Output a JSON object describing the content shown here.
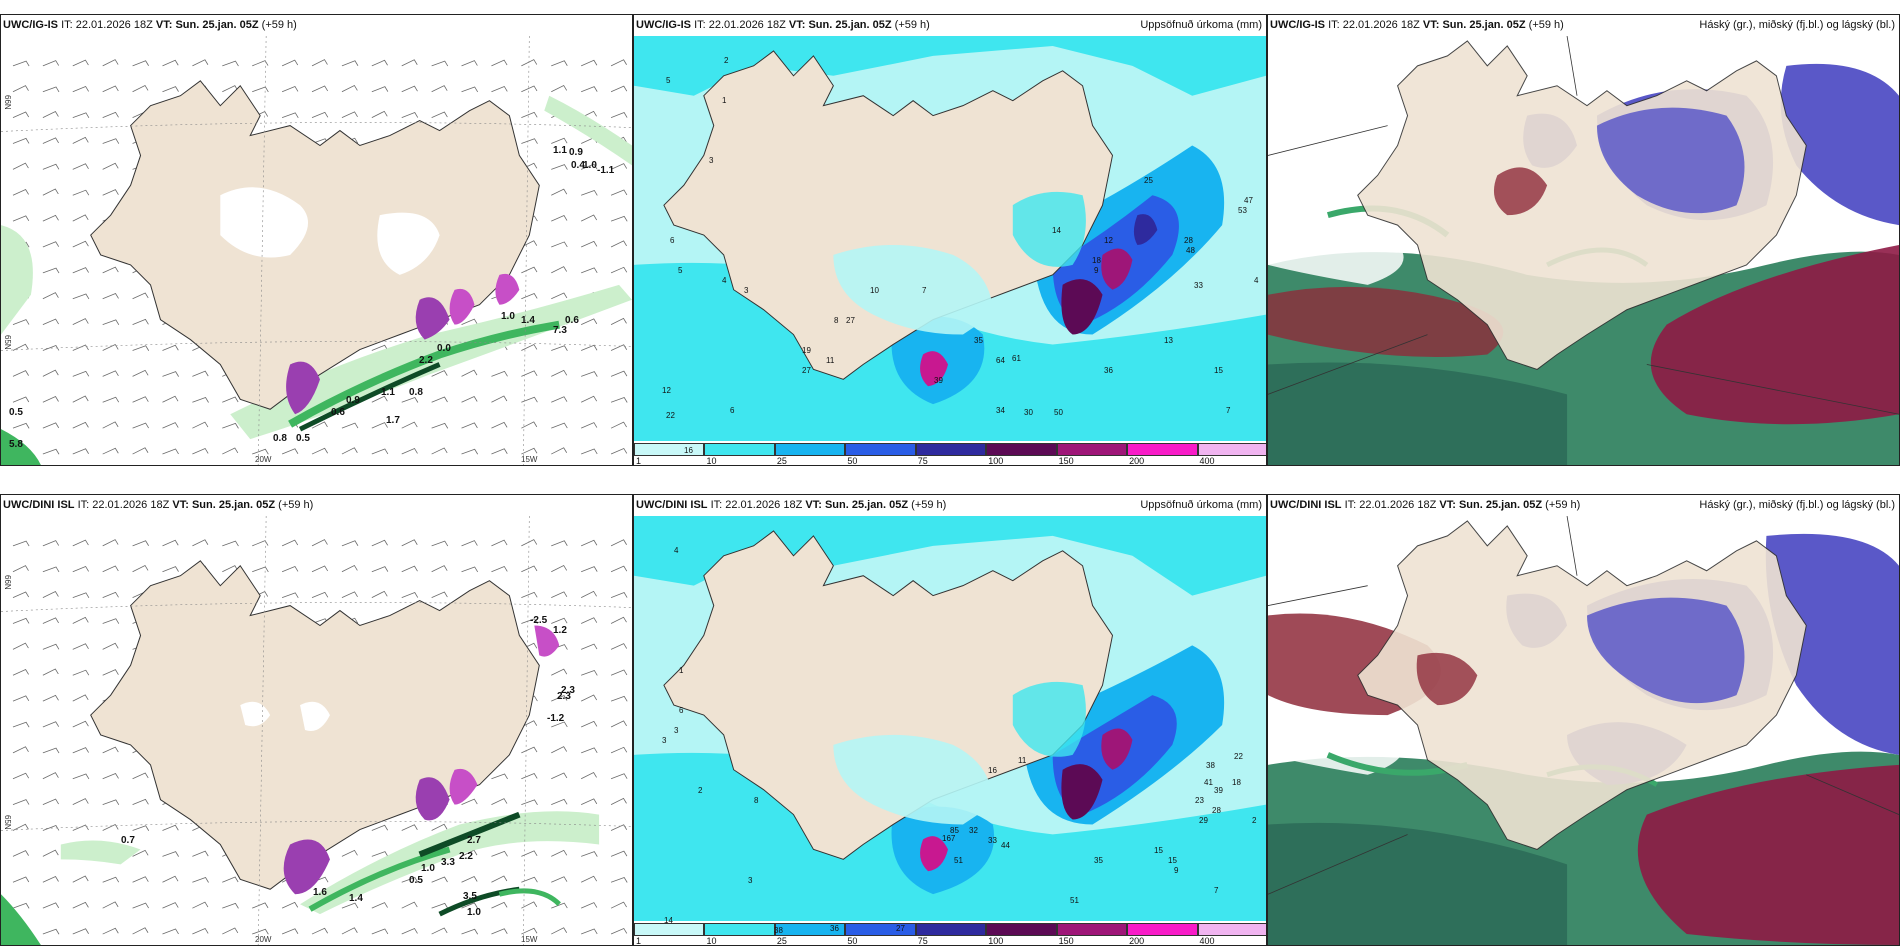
{
  "colors": {
    "land": "#efe3d3",
    "sea": "#ffffff",
    "precip_light": "#b4f5f5",
    "precip_cyan": "#3fe6ef",
    "precip_mid": "#18b4f0",
    "precip_blue": "#2a5de6",
    "precip_dark": "#2e2a9e",
    "precip_purple": "#5c0a55",
    "precip_magenta": "#c81890",
    "precip_pink": "#f81cc8",
    "precip_lilac": "#f0b4f0",
    "green_light": "#ccefcc",
    "green_mid": "#3fb65f",
    "green_dark": "#0e4b26",
    "cloud_high": "#5a58c8",
    "cloud_mid": "#8e2a3a",
    "cloud_low": "#3aa86a"
  },
  "rows": [
    {
      "model": "UWC/IG-IS",
      "panels": {
        "wind": {
          "header": {
            "model": "UWC/IG-IS",
            "it_label": "IT:",
            "it_value": "22.01.2026 18Z",
            "vt_label": "VT:",
            "vt_value": "Sun. 25.jan. 05Z",
            "lead": "(+59 h)"
          },
          "lat_labels": [
            "66N",
            "65N"
          ],
          "lon_labels": [
            "20W",
            "15W"
          ],
          "values": [
            "0.5",
            "5.8",
            "0.8",
            "0.5",
            "0.6",
            "0.9",
            "1.1",
            "1.7",
            "0.8",
            "2.2",
            "0.0",
            "1.0",
            "1.4",
            "7.3",
            "0.6",
            "1.1",
            "0.9",
            "0.4",
            "1.0",
            "-1.1"
          ]
        },
        "precip": {
          "header": {
            "model": "UWC/IG-IS",
            "it_label": "IT:",
            "it_value": "22.01.2026 18Z",
            "vt_label": "VT:",
            "vt_value": "Sun. 25.jan. 05Z",
            "lead": "(+59 h)"
          },
          "title": "Uppsöfnuð úrkoma (mm)",
          "values": [
            "5",
            "2",
            "1",
            "3",
            "6",
            "5",
            "4",
            "3",
            "12",
            "22",
            "6",
            "16",
            "19",
            "27",
            "11",
            "8",
            "27",
            "10",
            "7",
            "35",
            "64",
            "61",
            "39",
            "34",
            "30",
            "50",
            "36",
            "13",
            "15",
            "7",
            "28",
            "47",
            "53",
            "48",
            "33",
            "25",
            "12",
            "9",
            "14",
            "18",
            "4"
          ]
        },
        "clouds": {
          "header": {
            "model": "UWC/IG-IS",
            "it_label": "IT:",
            "it_value": "22.01.2026 18Z",
            "vt_label": "VT:",
            "vt_value": "Sun. 25.jan. 05Z",
            "lead": "(+59 h)"
          },
          "title": "Háský (gr.), miðský (fj.bl.) og lágský (bl.)"
        }
      }
    },
    {
      "model": "UWC/DINI ISL",
      "panels": {
        "wind": {
          "header": {
            "model": "UWC/DINI ISL",
            "it_label": "IT:",
            "it_value": "22.01.2026 18Z",
            "vt_label": "VT:",
            "vt_value": "Sun. 25.jan. 05Z",
            "lead": "(+59 h)"
          },
          "lat_labels": [
            "66N",
            "65N"
          ],
          "lon_labels": [
            "20W",
            "15W"
          ],
          "values": [
            "0.7",
            "1.6",
            "1.4",
            "0.5",
            "1.0",
            "3.3",
            "2.2",
            "2.7",
            "3.5",
            "1.0",
            "2.3",
            "-1.2",
            "-2.5",
            "2.3",
            "1.2"
          ]
        },
        "precip": {
          "header": {
            "model": "UWC/DINI ISL",
            "it_label": "IT:",
            "it_value": "22.01.2026 18Z",
            "vt_label": "VT:",
            "vt_value": "Sun. 25.jan. 05Z",
            "lead": "(+59 h)"
          },
          "title": "Uppsöfnuð úrkoma (mm)",
          "values": [
            "4",
            "1",
            "3",
            "6",
            "3",
            "2",
            "8",
            "3",
            "14",
            "38",
            "36",
            "27",
            "167",
            "51",
            "85",
            "32",
            "33",
            "44",
            "16",
            "11",
            "35",
            "51",
            "15",
            "15",
            "9",
            "23",
            "29",
            "41",
            "39",
            "28",
            "22",
            "38",
            "18",
            "7",
            "2"
          ]
        },
        "clouds": {
          "header": {
            "model": "UWC/DINI ISL",
            "it_label": "IT:",
            "it_value": "22.01.2026 18Z",
            "vt_label": "VT:",
            "vt_value": "Sun. 25.jan. 05Z",
            "lead": "(+59 h)"
          },
          "title": "Háský (gr.), miðský (fj.bl.) og lágský (bl.)"
        }
      }
    }
  ],
  "colorbar": {
    "labels": [
      "1",
      "10",
      "25",
      "50",
      "75",
      "100",
      "150",
      "200",
      "400"
    ],
    "colors": [
      "#c8f8f8",
      "#3fe6ef",
      "#18b4f0",
      "#2a5de6",
      "#2e2a9e",
      "#5c0a55",
      "#9e1678",
      "#f81cc8",
      "#f0b4f0"
    ]
  }
}
